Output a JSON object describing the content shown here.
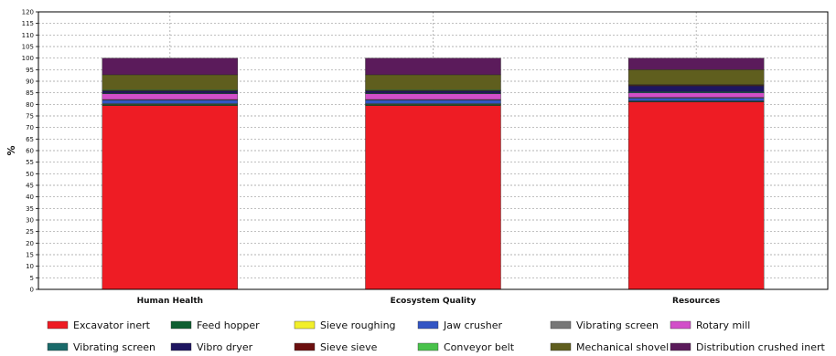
{
  "chart_data": {
    "type": "bar",
    "stacked": true,
    "ylabel": "%",
    "ylim": [
      0,
      120
    ],
    "ytick_step": 5,
    "grid": true,
    "legend_position": "bottom",
    "categories": [
      "Human Health",
      "Ecosystem Quality",
      "Resources"
    ],
    "series": [
      {
        "name": "Excavator inert",
        "color": "#ee1c24",
        "values": [
          79.5,
          79.5,
          81
        ]
      },
      {
        "name": "Feed hopper",
        "color": "#0f5e31",
        "values": [
          0.5,
          0.5,
          0.3
        ]
      },
      {
        "name": "Sieve roughing",
        "color": "#f2ef2a",
        "values": [
          0.3,
          0.3,
          0.2
        ]
      },
      {
        "name": "Jaw crusher",
        "color": "#3355c4",
        "values": [
          1.5,
          1.5,
          1.2
        ]
      },
      {
        "name": "Vibrating screen",
        "color": "#777777",
        "values": [
          0.3,
          0.3,
          0.3
        ]
      },
      {
        "name": "Rotary mill",
        "color": "#d24fc9",
        "values": [
          2.5,
          2.5,
          2
        ]
      },
      {
        "name": "Vibrating screen",
        "color": "#1a6a6a",
        "values": [
          0.3,
          0.3,
          0.5
        ]
      },
      {
        "name": "Vibro dryer",
        "color": "#1e1560",
        "values": [
          0.9,
          0.9,
          2.5
        ]
      },
      {
        "name": "Sieve sieve",
        "color": "#6b0f0f",
        "values": [
          0.2,
          0.2,
          0.3
        ]
      },
      {
        "name": "Conveyor belt",
        "color": "#49c24b",
        "values": [
          0.3,
          0.3,
          0.2
        ]
      },
      {
        "name": "Mechanical shovel",
        "color": "#5f5e1e",
        "values": [
          6.5,
          6.5,
          6.5
        ]
      },
      {
        "name": "Distribution crushed inert",
        "color": "#5b1b5b",
        "values": [
          7.2,
          7.2,
          5
        ]
      }
    ]
  }
}
